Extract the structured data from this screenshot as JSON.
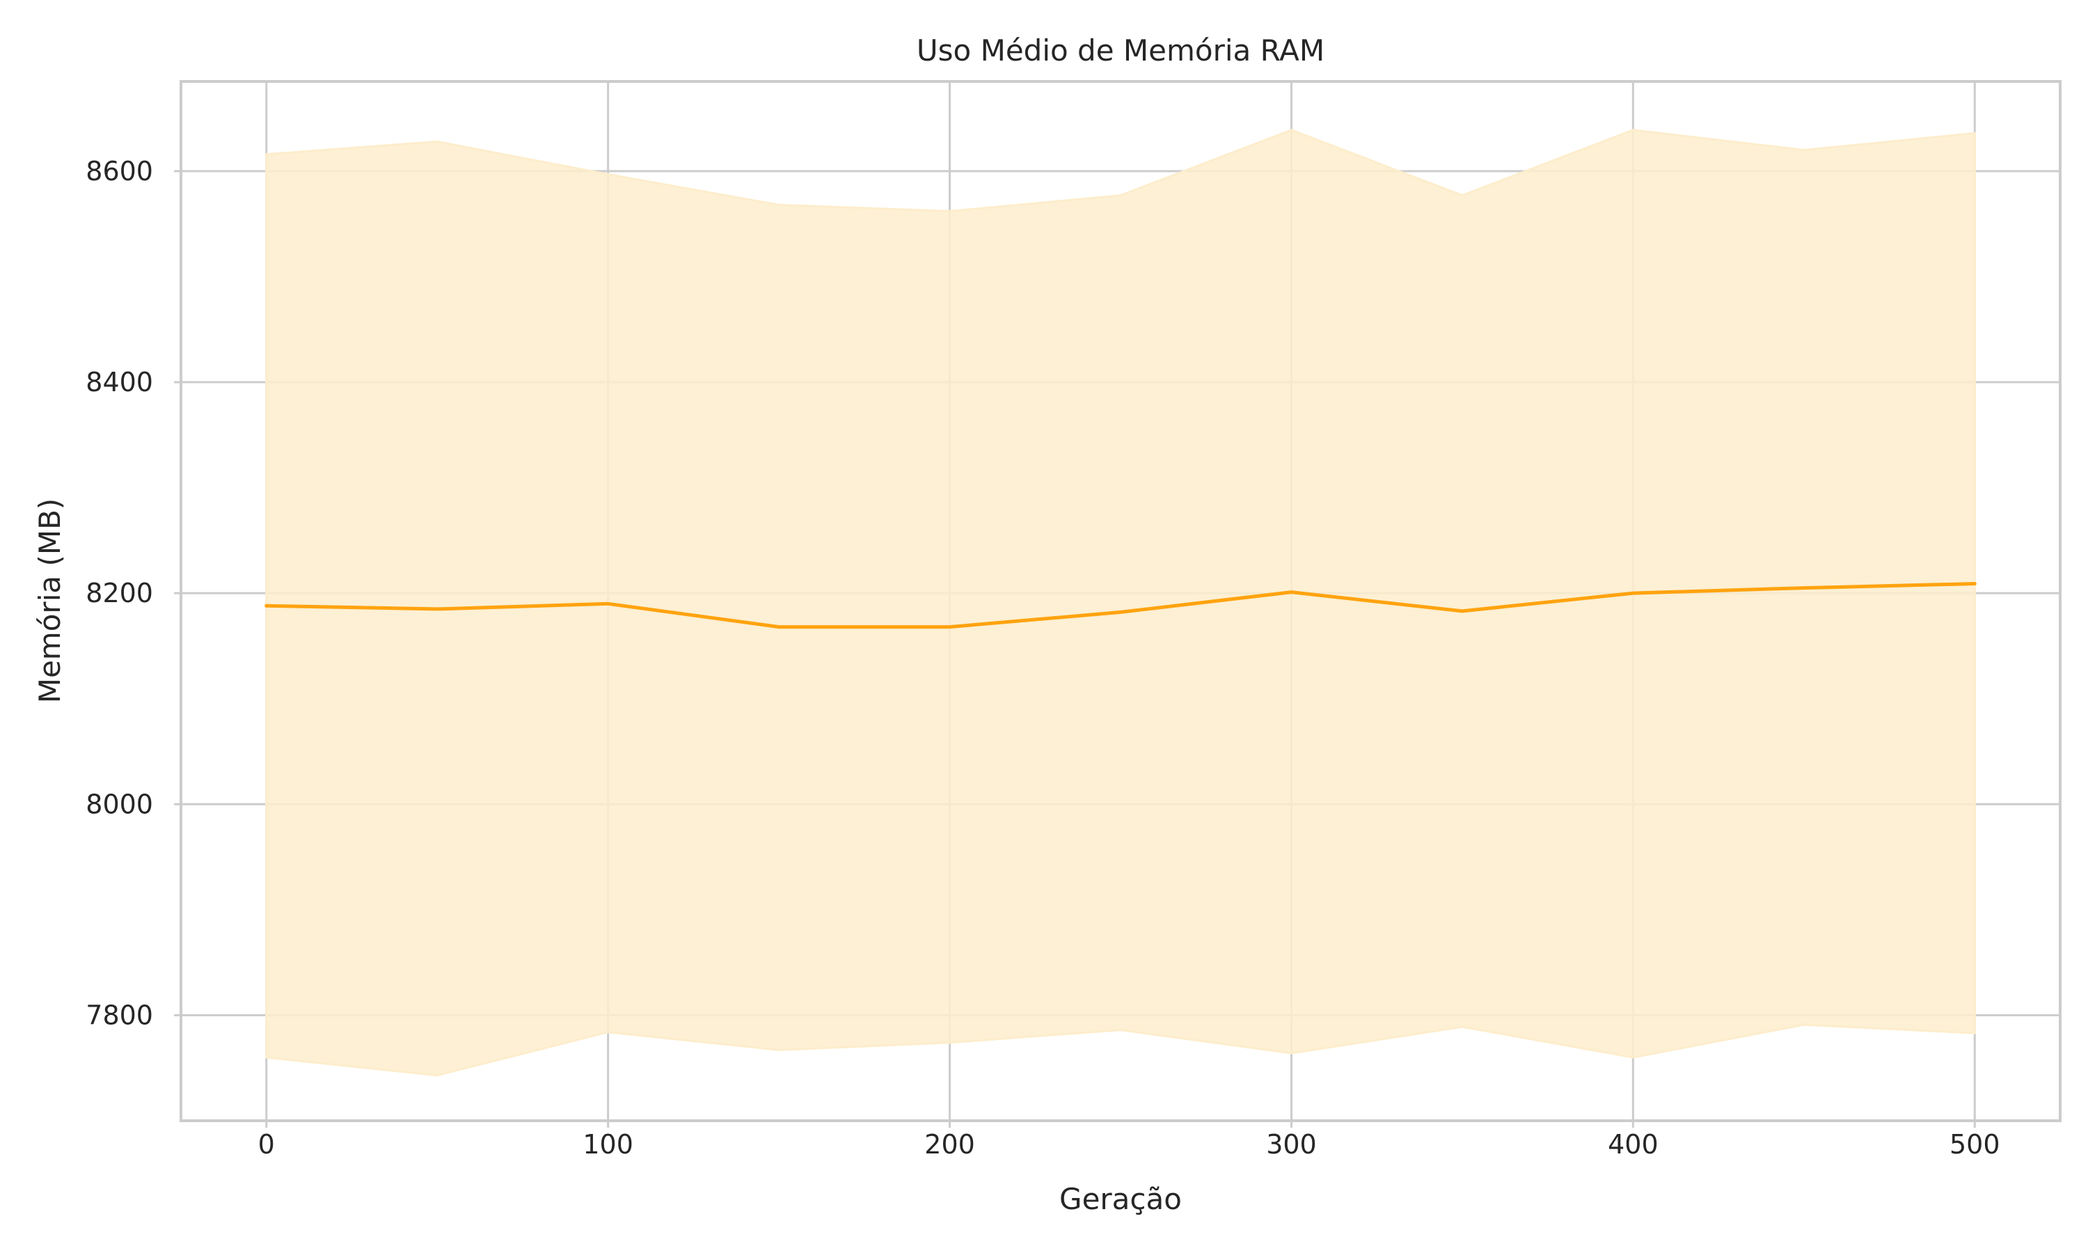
{
  "chart_data": {
    "type": "line",
    "title": "Uso Médio de Memória RAM",
    "xlabel": "Geração",
    "ylabel": "Memória (MB)",
    "xlim": [
      -25,
      525
    ],
    "ylim": [
      7700,
      8685
    ],
    "xticks": [
      0,
      100,
      200,
      300,
      400,
      500
    ],
    "yticks": [
      7800,
      8000,
      8200,
      8400,
      8600
    ],
    "grid": true,
    "series": [
      {
        "color": "#ffa30f",
        "band_color": "#fdedcc",
        "x": [
          0,
          50,
          100,
          150,
          200,
          250,
          300,
          350,
          400,
          450,
          500
        ],
        "mean": [
          8188,
          8185,
          8190,
          8168,
          8168,
          8182,
          8201,
          8183,
          8200,
          8205,
          8209
        ],
        "upper": [
          8616,
          8628,
          8597,
          8568,
          8562,
          8577,
          8639,
          8577,
          8639,
          8620,
          8636
        ],
        "lower": [
          7760,
          7743,
          7784,
          7767,
          7774,
          7786,
          7764,
          7789,
          7760,
          7791,
          7783
        ]
      }
    ]
  }
}
